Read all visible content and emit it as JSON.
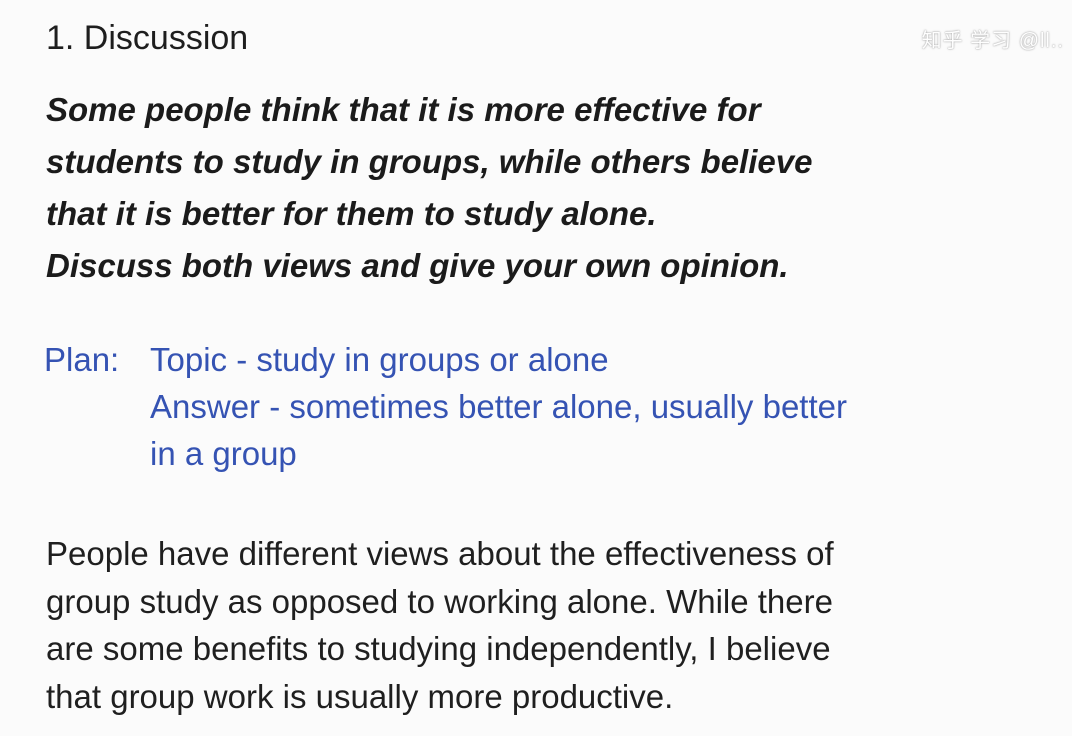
{
  "heading": "1. Discussion",
  "watermark": "知乎 学习 @ll..",
  "prompt": {
    "lines": [
      "Some people think that it is more effective for",
      "students to study in groups, while others believe",
      "that it is better for them to study alone.",
      "Discuss both views and give your own opinion."
    ]
  },
  "plan": {
    "label": "Plan:",
    "lines": [
      "Topic - study in groups or alone",
      "Answer - sometimes better alone, usually better",
      "in a group"
    ],
    "color": "#3553b3"
  },
  "essay": {
    "lines": [
      "People have different views about the effectiveness of",
      "group study as opposed to working alone. While there",
      "are some benefits to studying independently, I believe",
      "that group work is usually more productive."
    ]
  }
}
